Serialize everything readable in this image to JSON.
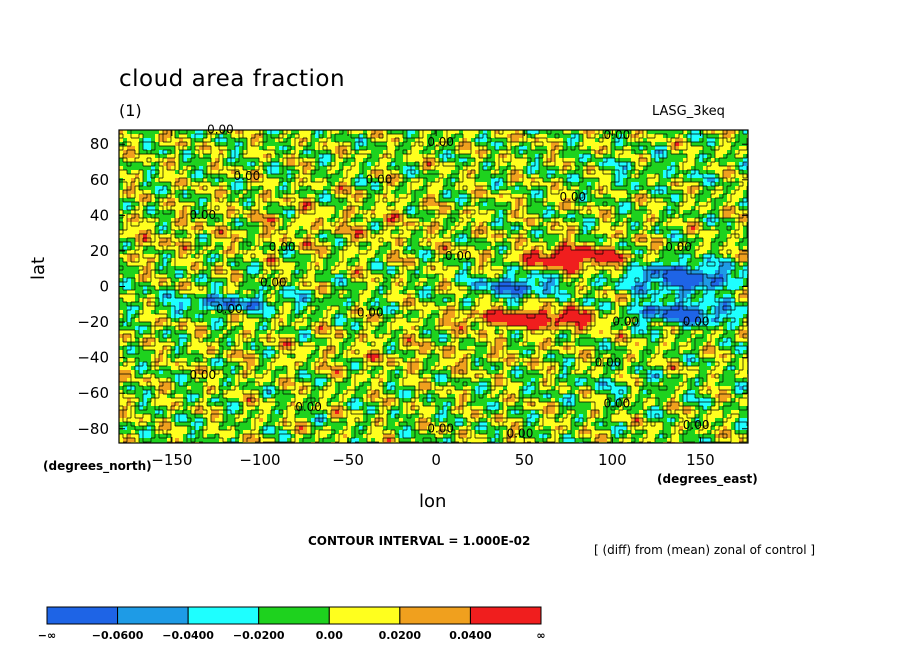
{
  "chart_data": {
    "type": "heatmap",
    "title": "cloud area fraction",
    "subtitle": "(1)",
    "model_label": "LASG_3keq",
    "xlabel": "lon",
    "ylabel": "lat",
    "x_unit_label": "(degrees_east)",
    "y_unit_label": "(degrees_north)",
    "xlim": [
      -180,
      177
    ],
    "ylim": [
      -88,
      88
    ],
    "x_ticks": [
      -150,
      -100,
      -50,
      0,
      50,
      100,
      150
    ],
    "y_ticks": [
      80,
      60,
      40,
      20,
      0,
      -20,
      -40,
      -60,
      -80
    ],
    "x_tick_labels": [
      "−150",
      "−100",
      "−50",
      "0",
      "50",
      "100",
      "150"
    ],
    "y_tick_labels": [
      "80",
      "60",
      "40",
      "20",
      "0",
      "−20",
      "−40",
      "−60",
      "−80"
    ],
    "contour_interval_text": "CONTOUR INTERVAL = 1.000E-02",
    "note": "[ (diff) from (mean) zonal of control ]",
    "colorbar": {
      "boundaries": [
        "−∞",
        "−0.0600",
        "−0.0400",
        "−0.0200",
        "0.00",
        "0.0200",
        "0.0400",
        "∞"
      ],
      "colors": [
        "#1e64e6",
        "#1e9be6",
        "#1effff",
        "#1ed21e",
        "#ffff1e",
        "#f0a01e",
        "#f01e1e"
      ]
    },
    "features": [
      {
        "kind": "positive_max",
        "lon": [
          40,
          110
        ],
        "lat": [
          10,
          25
        ],
        "level": "> 0.04"
      },
      {
        "kind": "positive_max",
        "lon": [
          10,
          100
        ],
        "lat": [
          -25,
          -12
        ],
        "level": "> 0.04"
      },
      {
        "kind": "negative_min",
        "lon": [
          105,
          177
        ],
        "lat": [
          -25,
          20
        ],
        "level": "< -0.06"
      },
      {
        "kind": "negative_min",
        "lon": [
          20,
          60
        ],
        "lat": [
          -10,
          10
        ],
        "level": "< -0.06"
      }
    ],
    "contour_labels": [
      "0.00",
      "0.00",
      "0.00",
      "0.00",
      "0.00",
      "0.00",
      "0.00",
      "0.00",
      "0.00",
      "0.00",
      "0.00",
      "0.00",
      "0.00",
      "0.00",
      "0.00",
      "0.00",
      "0.00",
      "0.00",
      "0.00",
      "0.00",
      "0.00",
      "0.00"
    ],
    "grid": false
  }
}
